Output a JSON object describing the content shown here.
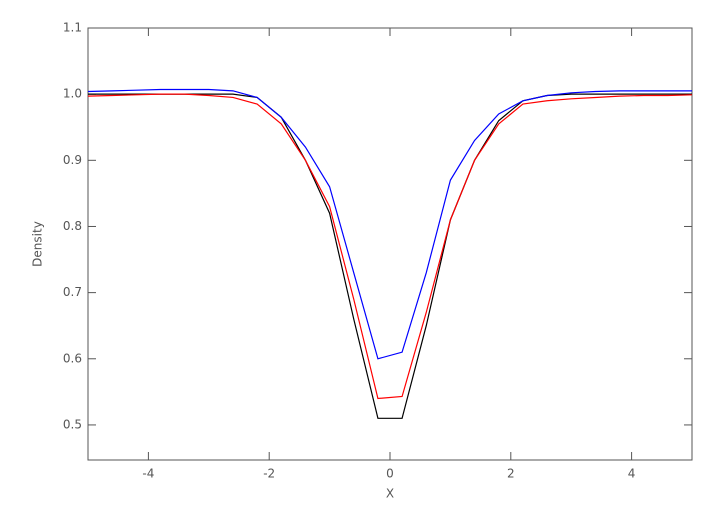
{
  "chart_data": {
    "type": "line",
    "x_label": "X",
    "y_label": "Density",
    "x": [
      -5,
      -4.6,
      -4.2,
      -3.8,
      -3.4,
      -3.0,
      -2.6,
      -2.2,
      -1.8,
      -1.4,
      -1.0,
      -0.6,
      -0.2,
      0.2,
      0.6,
      1.0,
      1.4,
      1.8,
      2.2,
      2.6,
      3.0,
      3.4,
      3.8,
      4.2,
      4.6,
      5
    ],
    "series": [
      {
        "color": "#000000",
        "values": [
          1.0,
          1.0,
          1.0,
          1.0,
          1.0,
          1.0,
          1.0,
          0.995,
          0.965,
          0.9,
          0.82,
          0.66,
          0.51,
          0.51,
          0.65,
          0.81,
          0.9,
          0.96,
          0.99,
          0.998,
          1.0,
          1.0,
          1.0,
          1.0,
          1.0,
          1.0
        ]
      },
      {
        "color": "#ff0000",
        "values": [
          0.997,
          0.998,
          0.999,
          1.0,
          1.0,
          0.998,
          0.995,
          0.985,
          0.955,
          0.9,
          0.83,
          0.69,
          0.54,
          0.543,
          0.67,
          0.81,
          0.9,
          0.955,
          0.985,
          0.99,
          0.993,
          0.995,
          0.997,
          0.998,
          0.998,
          0.999
        ]
      },
      {
        "color": "#0000ff",
        "values": [
          1.004,
          1.005,
          1.006,
          1.007,
          1.007,
          1.007,
          1.005,
          0.995,
          0.965,
          0.92,
          0.86,
          0.73,
          0.6,
          0.61,
          0.73,
          0.87,
          0.93,
          0.97,
          0.99,
          0.998,
          1.002,
          1.004,
          1.005,
          1.005,
          1.005,
          1.005
        ]
      }
    ],
    "xlim": [
      -5,
      5
    ],
    "xticks": [
      -4,
      -2,
      0,
      2,
      4
    ],
    "ylim": [
      0.447,
      1.1
    ],
    "yticks": [
      0.5,
      0.6,
      0.7,
      0.8,
      0.9,
      {
        "value": 1,
        "label": "1.0"
      },
      1.1
    ]
  }
}
